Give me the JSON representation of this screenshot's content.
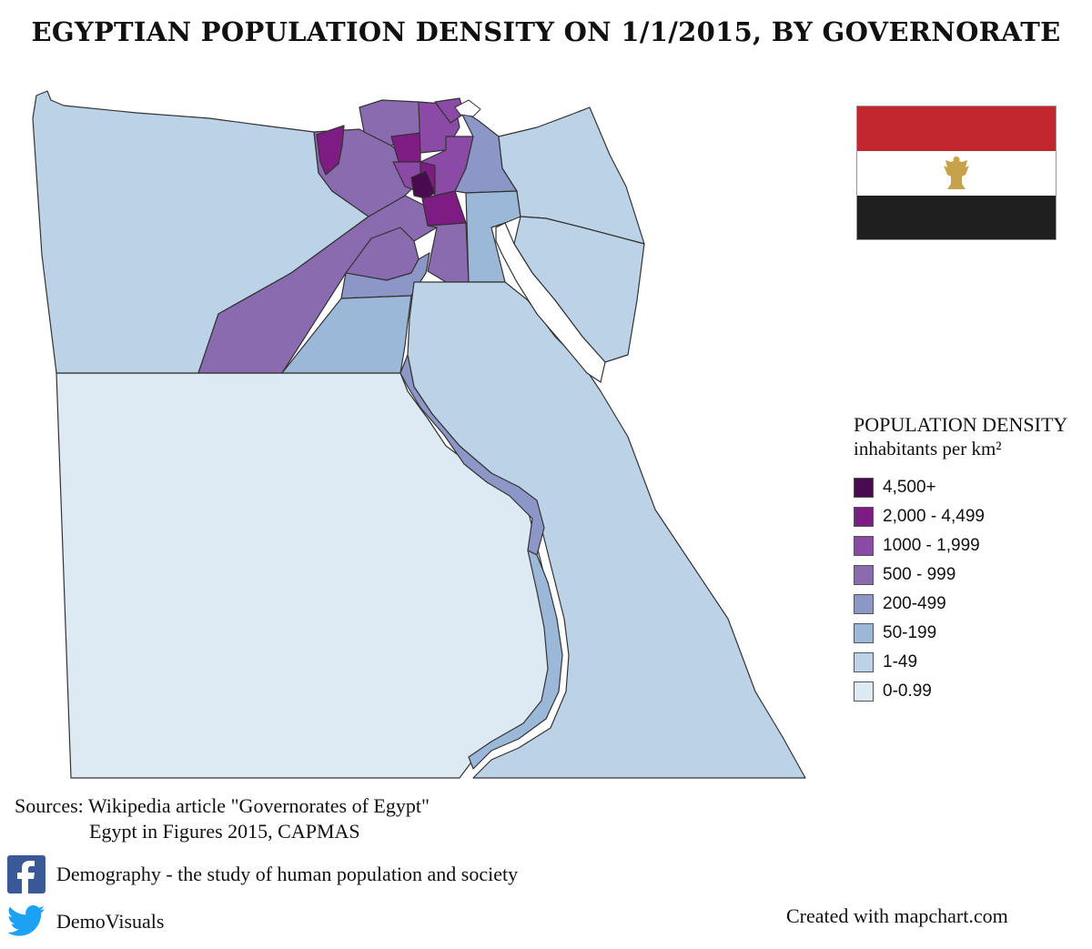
{
  "title": "EGYPTIAN POPULATION DENSITY ON 1/1/2015, BY GOVERNORATE",
  "flag": {
    "icon": "egypt-flag-icon",
    "colors": {
      "red": "#c1272d",
      "white": "#ffffff",
      "black": "#1f1f1f",
      "eagle": "#c8a24a"
    }
  },
  "legend": {
    "title": "POPULATION DENSITY",
    "subtitle": "inhabitants per km²",
    "items": [
      {
        "label": "4,500+",
        "color": "#4a0a4f"
      },
      {
        "label": "2,000 - 4,499",
        "color": "#7e1c83"
      },
      {
        "label": "1000 - 1,999",
        "color": "#8b4aa6"
      },
      {
        "label": "500 - 999",
        "color": "#8a6bb0"
      },
      {
        "label": "200-499",
        "color": "#8c97c8"
      },
      {
        "label": "50-199",
        "color": "#9cb8d8"
      },
      {
        "label": "1-49",
        "color": "#bcd2e6"
      },
      {
        "label": "0-0.99",
        "color": "#dde9f3"
      }
    ]
  },
  "sources": {
    "line1": "Sources: Wikipedia article \"Governorates of Egypt\"",
    "line2": "Egypt in Figures 2015, CAPMAS"
  },
  "social": {
    "facebook": {
      "icon": "facebook-icon",
      "text": "Demography - the study of human population and society",
      "color": "#3b5998"
    },
    "twitter": {
      "icon": "twitter-icon",
      "text": "DemoVisuals",
      "color": "#1da1f2"
    }
  },
  "credit": "Created with mapchart.com"
}
